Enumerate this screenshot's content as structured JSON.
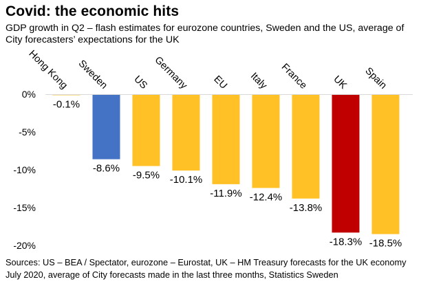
{
  "title": "Covid: the economic hits",
  "subtitle": "GDP growth in Q2 – flash estimates for eurozone countries, Sweden and the US, average of City forecasters’ expectations for the UK",
  "source": "Sources: US – BEA / Spectator, eurozone – Eurostat, UK – HM Treasury forecasts for the UK economy July 2020, average of City forecasts made in the last three months, Statistics Sweden",
  "colors": {
    "default": "#ffc125",
    "sweden": "#4472c4",
    "uk": "#c00000"
  },
  "chart_data": {
    "type": "bar",
    "title": "Covid: the economic hits",
    "xlabel": "",
    "ylabel": "",
    "ylim": [
      -20,
      0
    ],
    "yticks": [
      0,
      -5,
      -10,
      -15,
      -20
    ],
    "ytick_labels": [
      "0%",
      "-5%",
      "-10%",
      "-15%",
      "-20%"
    ],
    "grid": false,
    "categories": [
      "Hong Kong",
      "Sweden",
      "US",
      "Germany",
      "EU",
      "Italy",
      "France",
      "UK",
      "Spain"
    ],
    "values": [
      -0.1,
      -8.6,
      -9.5,
      -10.1,
      -11.9,
      -12.4,
      -13.8,
      -18.3,
      -18.5
    ],
    "value_labels": [
      "-0.1%",
      "-8.6%",
      "-9.5%",
      "-10.1%",
      "-11.9%",
      "-12.4%",
      "-13.8%",
      "-18.3%",
      "-18.5%"
    ],
    "bar_colors": [
      "#ffc125",
      "#4472c4",
      "#ffc125",
      "#ffc125",
      "#ffc125",
      "#ffc125",
      "#ffc125",
      "#c00000",
      "#ffc125"
    ]
  }
}
